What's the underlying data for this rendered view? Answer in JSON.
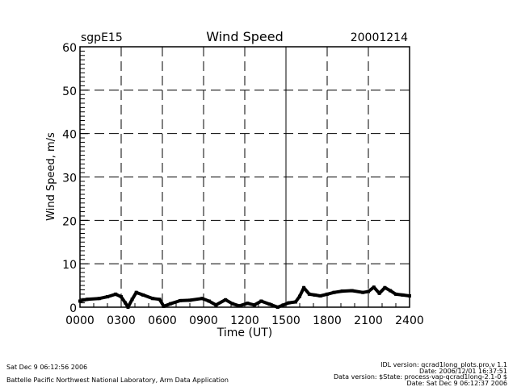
{
  "header": {
    "site": "sgpE15",
    "date": "20001214"
  },
  "footer": {
    "left_line1": "Sat Dec  9 06:12:56 2006",
    "left_line2": "Battelle Pacific Northwest National Laboratory, Arm Data Application",
    "right_line1": "IDL version: qcrad1long_plots.pro,v 1.1",
    "right_line2": "Date: 2006/12/01 16:37:51",
    "right_line3": "Data version: $State: process-vap-qcrad1long-2.1-0 $",
    "right_line4": "Date: Sat Dec  9 06:12:37 2006"
  },
  "chart_data": {
    "type": "line",
    "title": "Wind Speed",
    "xlabel": "Time (UT)",
    "ylabel": "Wind Speed, m/s",
    "xlim": [
      0,
      24
    ],
    "ylim": [
      0,
      60
    ],
    "xticks": [
      0,
      3,
      6,
      9,
      12,
      15,
      18,
      21,
      24
    ],
    "xtick_labels": [
      "0000",
      "0300",
      "0600",
      "0900",
      "1200",
      "1500",
      "1800",
      "2100",
      "2400"
    ],
    "yticks": [
      0,
      10,
      20,
      30,
      40,
      50,
      60
    ],
    "ytick_labels": [
      "0",
      "10",
      "20",
      "30",
      "40",
      "50",
      "60"
    ],
    "grid": true,
    "color": "#000000",
    "series": [
      {
        "name": "Wind Speed",
        "x": [
          0.0,
          0.5,
          1.4,
          2.0,
          2.6,
          3.0,
          3.3,
          3.5,
          3.8,
          4.1,
          4.6,
          5.3,
          5.8,
          6.1,
          6.6,
          7.3,
          8.0,
          8.9,
          9.4,
          9.9,
          10.6,
          11.1,
          11.6,
          12.2,
          12.7,
          13.2,
          13.8,
          14.4,
          14.8,
          15.2,
          15.7,
          16.0,
          16.3,
          16.7,
          17.1,
          17.5,
          18.0,
          18.5,
          19.1,
          19.8,
          20.6,
          21.0,
          21.4,
          21.8,
          22.2,
          22.6,
          23.0,
          23.5,
          24.0
        ],
        "y": [
          1.4,
          1.8,
          2.0,
          2.4,
          3.0,
          2.4,
          1.0,
          0.0,
          1.8,
          3.4,
          2.8,
          2.0,
          1.8,
          0.2,
          0.8,
          1.5,
          1.6,
          2.0,
          1.4,
          0.5,
          1.7,
          0.8,
          0.3,
          0.9,
          0.5,
          1.4,
          0.7,
          0.0,
          0.5,
          1.0,
          1.2,
          2.5,
          4.5,
          3.0,
          2.8,
          2.6,
          3.0,
          3.4,
          3.7,
          3.8,
          3.4,
          3.6,
          4.6,
          3.2,
          4.5,
          3.8,
          3.0,
          2.8,
          2.6
        ]
      }
    ]
  }
}
